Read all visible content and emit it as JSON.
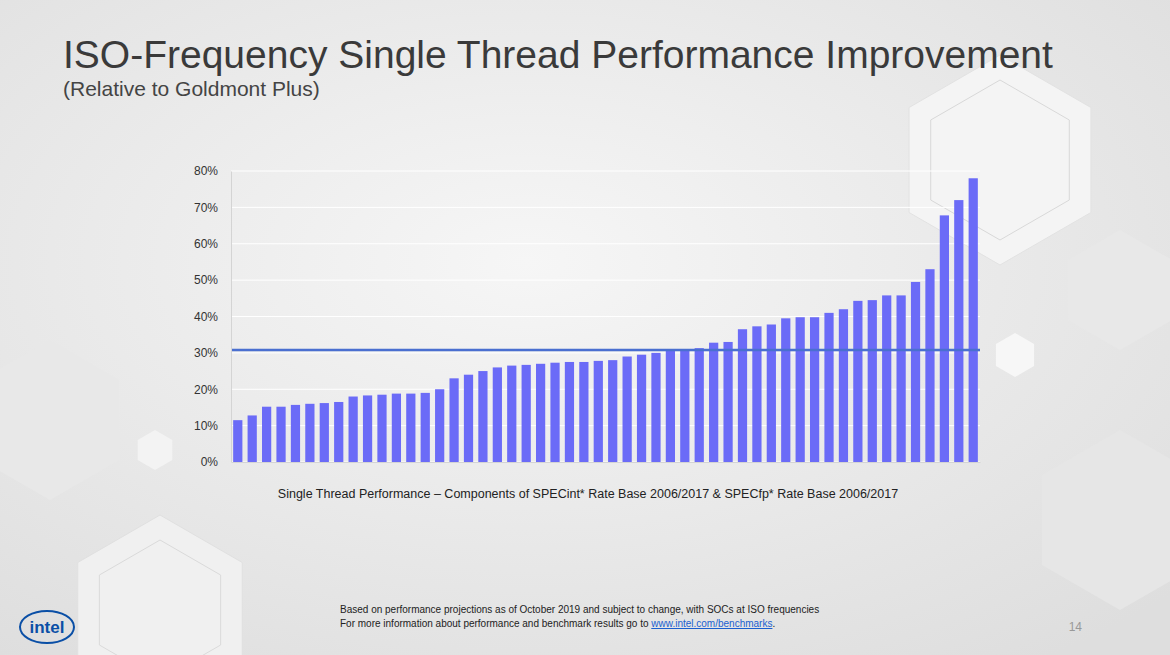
{
  "chart_data": {
    "type": "bar",
    "title": "ISO-Frequency Single Thread Performance Improvement",
    "subtitle": "(Relative to Goldmont Plus)",
    "x_label": "Single Thread Performance – Components of SPECint* Rate Base 2006/2017 & SPECfp* Rate Base 2006/2017",
    "categories": [
      null,
      null,
      null,
      null,
      null,
      null,
      null,
      null,
      null,
      null,
      null,
      null,
      null,
      null,
      null,
      null,
      null,
      null,
      null,
      null,
      null,
      null,
      null,
      null,
      null,
      null,
      null,
      null,
      null,
      null,
      null,
      null,
      null,
      null,
      null,
      null,
      null,
      null,
      null,
      null,
      null,
      null,
      null,
      null,
      null,
      null,
      null,
      null,
      null,
      null,
      null,
      null
    ],
    "values": [
      11.5,
      12.8,
      15.2,
      15.2,
      15.7,
      16.0,
      16.2,
      16.5,
      18.0,
      18.3,
      18.5,
      18.8,
      18.8,
      19.0,
      20.0,
      23.0,
      24.0,
      25.0,
      26.0,
      26.5,
      26.7,
      27.0,
      27.3,
      27.5,
      27.5,
      27.8,
      28.0,
      29.0,
      29.5,
      30.0,
      30.8,
      31.0,
      31.3,
      32.8,
      33.0,
      36.5,
      37.3,
      37.8,
      39.5,
      39.8,
      39.8,
      41.0,
      42.0,
      44.3,
      44.5,
      45.8,
      45.8,
      49.5,
      53.0,
      67.8,
      72.0,
      78.0
    ],
    "color": "#6b6bf7",
    "reference_line": 30.8,
    "ylim": [
      0,
      80
    ],
    "yticks": [
      {
        "value": 0,
        "label": "0%"
      },
      {
        "value": 10,
        "label": "10%"
      },
      {
        "value": 20,
        "label": "20%"
      },
      {
        "value": 30,
        "label": "30%"
      },
      {
        "value": 40,
        "label": "40%"
      },
      {
        "value": 50,
        "label": "50%"
      },
      {
        "value": 60,
        "label": "60%"
      },
      {
        "value": 70,
        "label": "70%"
      },
      {
        "value": 80,
        "label": "80%"
      }
    ],
    "grid": true,
    "tick_labels": "y"
  },
  "footnote": {
    "line1": "Based on performance projections as of October 2019 and subject to change, with SOCs at ISO frequencies",
    "line2_prefix": "For more information about performance and benchmark results go to ",
    "link": "www.intel.com/benchmarks",
    "line2_suffix": "."
  },
  "page_number": "14",
  "logo": "intel"
}
